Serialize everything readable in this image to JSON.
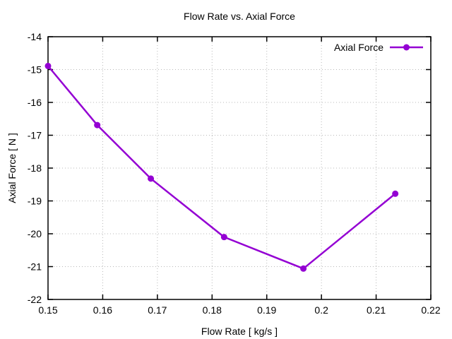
{
  "title": "Flow Rate vs. Axial Force",
  "chart_data": {
    "type": "line",
    "title": "Flow Rate vs. Axial Force",
    "xlabel": "Flow Rate [ kg/s ]",
    "ylabel": "Axial Force [ N ]",
    "xlim": [
      0.15,
      0.22
    ],
    "ylim": [
      -22,
      -14
    ],
    "xticks": [
      0.15,
      0.16,
      0.17,
      0.18,
      0.19,
      0.2,
      0.21,
      0.22
    ],
    "xtick_labels": [
      "0.15",
      "0.16",
      "0.17",
      "0.18",
      "0.19",
      "0.2",
      "0.21",
      "0.22"
    ],
    "yticks": [
      -22,
      -21,
      -20,
      -19,
      -18,
      -17,
      -16,
      -15,
      -14
    ],
    "ytick_labels": [
      "-22",
      "-21",
      "-20",
      "-19",
      "-18",
      "-17",
      "-16",
      "-15",
      "-14"
    ],
    "grid": true,
    "legend_position": "top-right-inside",
    "series": [
      {
        "name": "Axial Force",
        "color": "#9400d3",
        "marker": "filled-circle",
        "x": [
          0.15,
          0.159,
          0.1688,
          0.1822,
          0.1967,
          0.2135
        ],
        "y": [
          -14.89,
          -16.69,
          -18.32,
          -20.1,
          -21.06,
          -18.78
        ]
      }
    ]
  },
  "colors": {
    "background": "#ffffff",
    "axis": "#000000",
    "grid": "#b8b8b8",
    "text": "#000000",
    "series": "#9400d3"
  }
}
